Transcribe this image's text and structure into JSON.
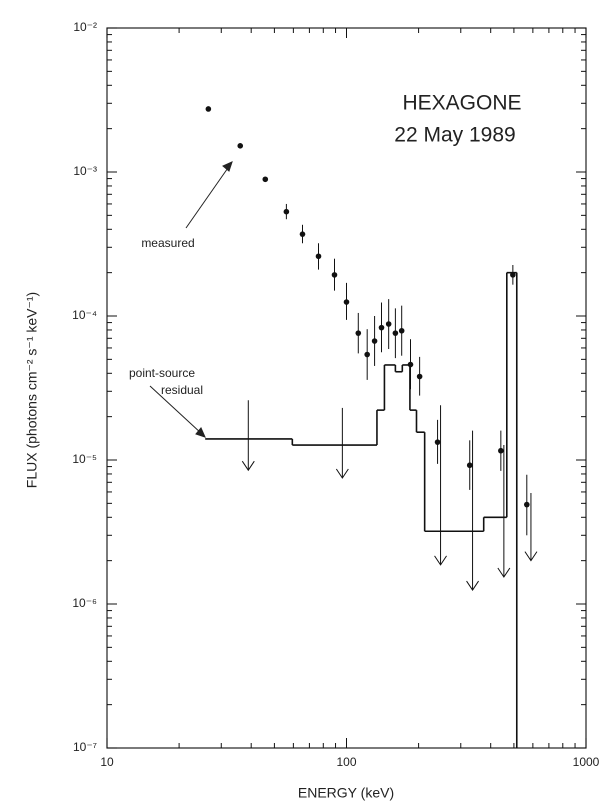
{
  "chart_data": {
    "type": "scatter",
    "xlabel": "ENERGY (keV)",
    "ylabel": "FLUX (photons cm⁻² s⁻¹ keV⁻¹)",
    "xscale": "log",
    "yscale": "log",
    "xlim": [
      10,
      1000
    ],
    "ylim": [
      1e-07,
      0.01
    ],
    "xticks": [
      10,
      100,
      1000
    ],
    "yticks": [
      {
        "value": 0.01,
        "label": "10⁻²"
      },
      {
        "value": 0.001,
        "label": "10⁻³"
      },
      {
        "value": 0.0001,
        "label": "10⁻⁴"
      },
      {
        "value": 1e-05,
        "label": "10⁻⁵"
      },
      {
        "value": 1e-06,
        "label": "10⁻⁶"
      },
      {
        "value": 1e-07,
        "label": "10⁻⁷"
      }
    ],
    "color": "#111111",
    "annotations": [
      {
        "text": "HEXAGONE"
      },
      {
        "text": "22 May 1989"
      },
      {
        "text": "measured"
      },
      {
        "text": "point-source"
      },
      {
        "text": "residual"
      }
    ],
    "series": [
      {
        "type": "errorbar",
        "x": [
          26.5,
          36,
          45.8,
          56.1,
          65.5,
          76.4,
          89.1,
          100,
          112,
          122,
          131,
          140,
          150,
          160,
          170,
          185,
          202,
          240,
          327,
          441,
          495,
          566
        ],
        "values": [
          0.00274,
          0.00152,
          0.00089,
          0.00053,
          0.00037,
          0.00026,
          0.000193,
          0.000125,
          7.6e-05,
          5.4e-05,
          6.7e-05,
          8.3e-05,
          8.8e-05,
          7.6e-05,
          7.9e-05,
          4.6e-05,
          3.8e-05,
          1.33e-05,
          9.2e-06,
          1.16e-05,
          0.000193,
          4.9e-06
        ],
        "lower": [
          null,
          null,
          null,
          0.00047,
          0.00032,
          0.00021,
          0.00015,
          9.4e-05,
          5.5e-05,
          3.6e-05,
          4.5e-05,
          5.6e-05,
          5.9e-05,
          5.1e-05,
          5.3e-05,
          3.1e-05,
          2.8e-05,
          9.4e-06,
          6.2e-06,
          8.4e-06,
          0.000165,
          3e-06
        ],
        "upper": [
          null,
          null,
          null,
          0.0006,
          0.00043,
          0.00032,
          0.00025,
          0.00017,
          0.000105,
          8.1e-05,
          0.0001,
          0.000124,
          0.000131,
          0.000113,
          0.000118,
          6.9e-05,
          5.2e-05,
          1.9e-05,
          1.37e-05,
          1.6e-05,
          0.000226,
          7.9e-06
        ]
      },
      {
        "type": "step",
        "bins": [
          25.7,
          59.4,
          134,
          144,
          160,
          171,
          184,
          196,
          212,
          374,
          467,
          514
        ],
        "values": [
          1.4e-05,
          1.27e-05,
          2.22e-05,
          4.57e-05,
          4.1e-05,
          4.57e-05,
          2.22e-05,
          1.56e-05,
          3.2e-06,
          4e-06,
          0.0002
        ]
      },
      {
        "type": "upper_limit",
        "x": [
          38.9,
          96.1,
          247,
          336,
          454,
          589
        ],
        "values": [
          2.6e-05,
          2.3e-05,
          2.4e-05,
          1.6e-05,
          1.27e-05,
          5.9e-06
        ],
        "tips": [
          8.5e-06,
          7.5e-06,
          1.87e-06,
          1.25e-06,
          1.54e-06,
          2e-06
        ]
      }
    ]
  }
}
